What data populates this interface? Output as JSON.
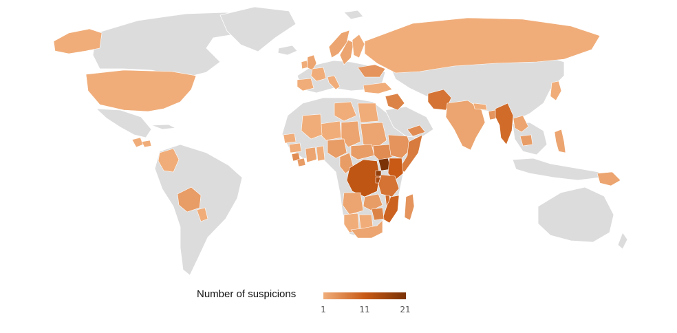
{
  "legend": {
    "title": "Number of suspicions",
    "min_label": "1",
    "mid_label": "11",
    "max_label": "21",
    "min_value": 1,
    "mid_value": 11,
    "max_value": 21
  },
  "colors": {
    "no_data": "#dcdcdc",
    "scale_low": "#f0ad7a",
    "scale_mid": "#c85a16",
    "scale_high": "#7a3206",
    "background": "#ffffff"
  },
  "regions": [
    {
      "name": "Alaska",
      "value": 1
    },
    {
      "name": "United States",
      "value": 1
    },
    {
      "name": "Guatemala",
      "value": 1
    },
    {
      "name": "Honduras",
      "value": 1
    },
    {
      "name": "Colombia",
      "value": 1
    },
    {
      "name": "Bolivia",
      "value": 3
    },
    {
      "name": "Paraguay",
      "value": 1
    },
    {
      "name": "United Kingdom",
      "value": 2
    },
    {
      "name": "Ireland",
      "value": 1
    },
    {
      "name": "Norway",
      "value": 2
    },
    {
      "name": "Sweden",
      "value": 2
    },
    {
      "name": "Finland",
      "value": 1
    },
    {
      "name": "Ukraine",
      "value": 4
    },
    {
      "name": "Spain",
      "value": 1
    },
    {
      "name": "France",
      "value": 1
    },
    {
      "name": "Italy",
      "value": 1
    },
    {
      "name": "Russia",
      "value": 1
    },
    {
      "name": "Turkey",
      "value": 1
    },
    {
      "name": "Iraq",
      "value": 6
    },
    {
      "name": "Yemen",
      "value": 5
    },
    {
      "name": "Afghanistan",
      "value": 8
    },
    {
      "name": "India",
      "value": 2
    },
    {
      "name": "Nepal",
      "value": 1
    },
    {
      "name": "Bangladesh",
      "value": 4
    },
    {
      "name": "Myanmar",
      "value": 9
    },
    {
      "name": "Laos",
      "value": 2
    },
    {
      "name": "Cambodia",
      "value": 3
    },
    {
      "name": "Philippines",
      "value": 2
    },
    {
      "name": "Papua New Guinea",
      "value": 2
    },
    {
      "name": "Japan",
      "value": 1
    },
    {
      "name": "Libya",
      "value": 1
    },
    {
      "name": "Egypt",
      "value": 1
    },
    {
      "name": "Sudan",
      "value": 2
    },
    {
      "name": "Chad",
      "value": 2
    },
    {
      "name": "Niger",
      "value": 1
    },
    {
      "name": "Mali",
      "value": 1
    },
    {
      "name": "Senegal",
      "value": 1
    },
    {
      "name": "Guinea",
      "value": 1
    },
    {
      "name": "Sierra Leone",
      "value": 5
    },
    {
      "name": "Liberia",
      "value": 3
    },
    {
      "name": "Ivory Coast",
      "value": 2
    },
    {
      "name": "Ghana",
      "value": 1
    },
    {
      "name": "Nigeria",
      "value": 3
    },
    {
      "name": "Cameroon",
      "value": 3
    },
    {
      "name": "Central African Republic",
      "value": 3
    },
    {
      "name": "South Sudan",
      "value": 5
    },
    {
      "name": "Ethiopia",
      "value": 4
    },
    {
      "name": "Somalia",
      "value": 7
    },
    {
      "name": "DR Congo",
      "value": 12
    },
    {
      "name": "Uganda",
      "value": 21
    },
    {
      "name": "Kenya",
      "value": 11
    },
    {
      "name": "Rwanda",
      "value": 18
    },
    {
      "name": "Burundi",
      "value": 15
    },
    {
      "name": "Tanzania",
      "value": 8
    },
    {
      "name": "Angola",
      "value": 2
    },
    {
      "name": "Zambia",
      "value": 3
    },
    {
      "name": "Malawi",
      "value": 9
    },
    {
      "name": "Mozambique",
      "value": 10
    },
    {
      "name": "Zimbabwe",
      "value": 6
    },
    {
      "name": "Namibia",
      "value": 1
    },
    {
      "name": "Botswana",
      "value": 1
    },
    {
      "name": "South Africa",
      "value": 2
    },
    {
      "name": "Madagascar",
      "value": 4
    }
  ]
}
